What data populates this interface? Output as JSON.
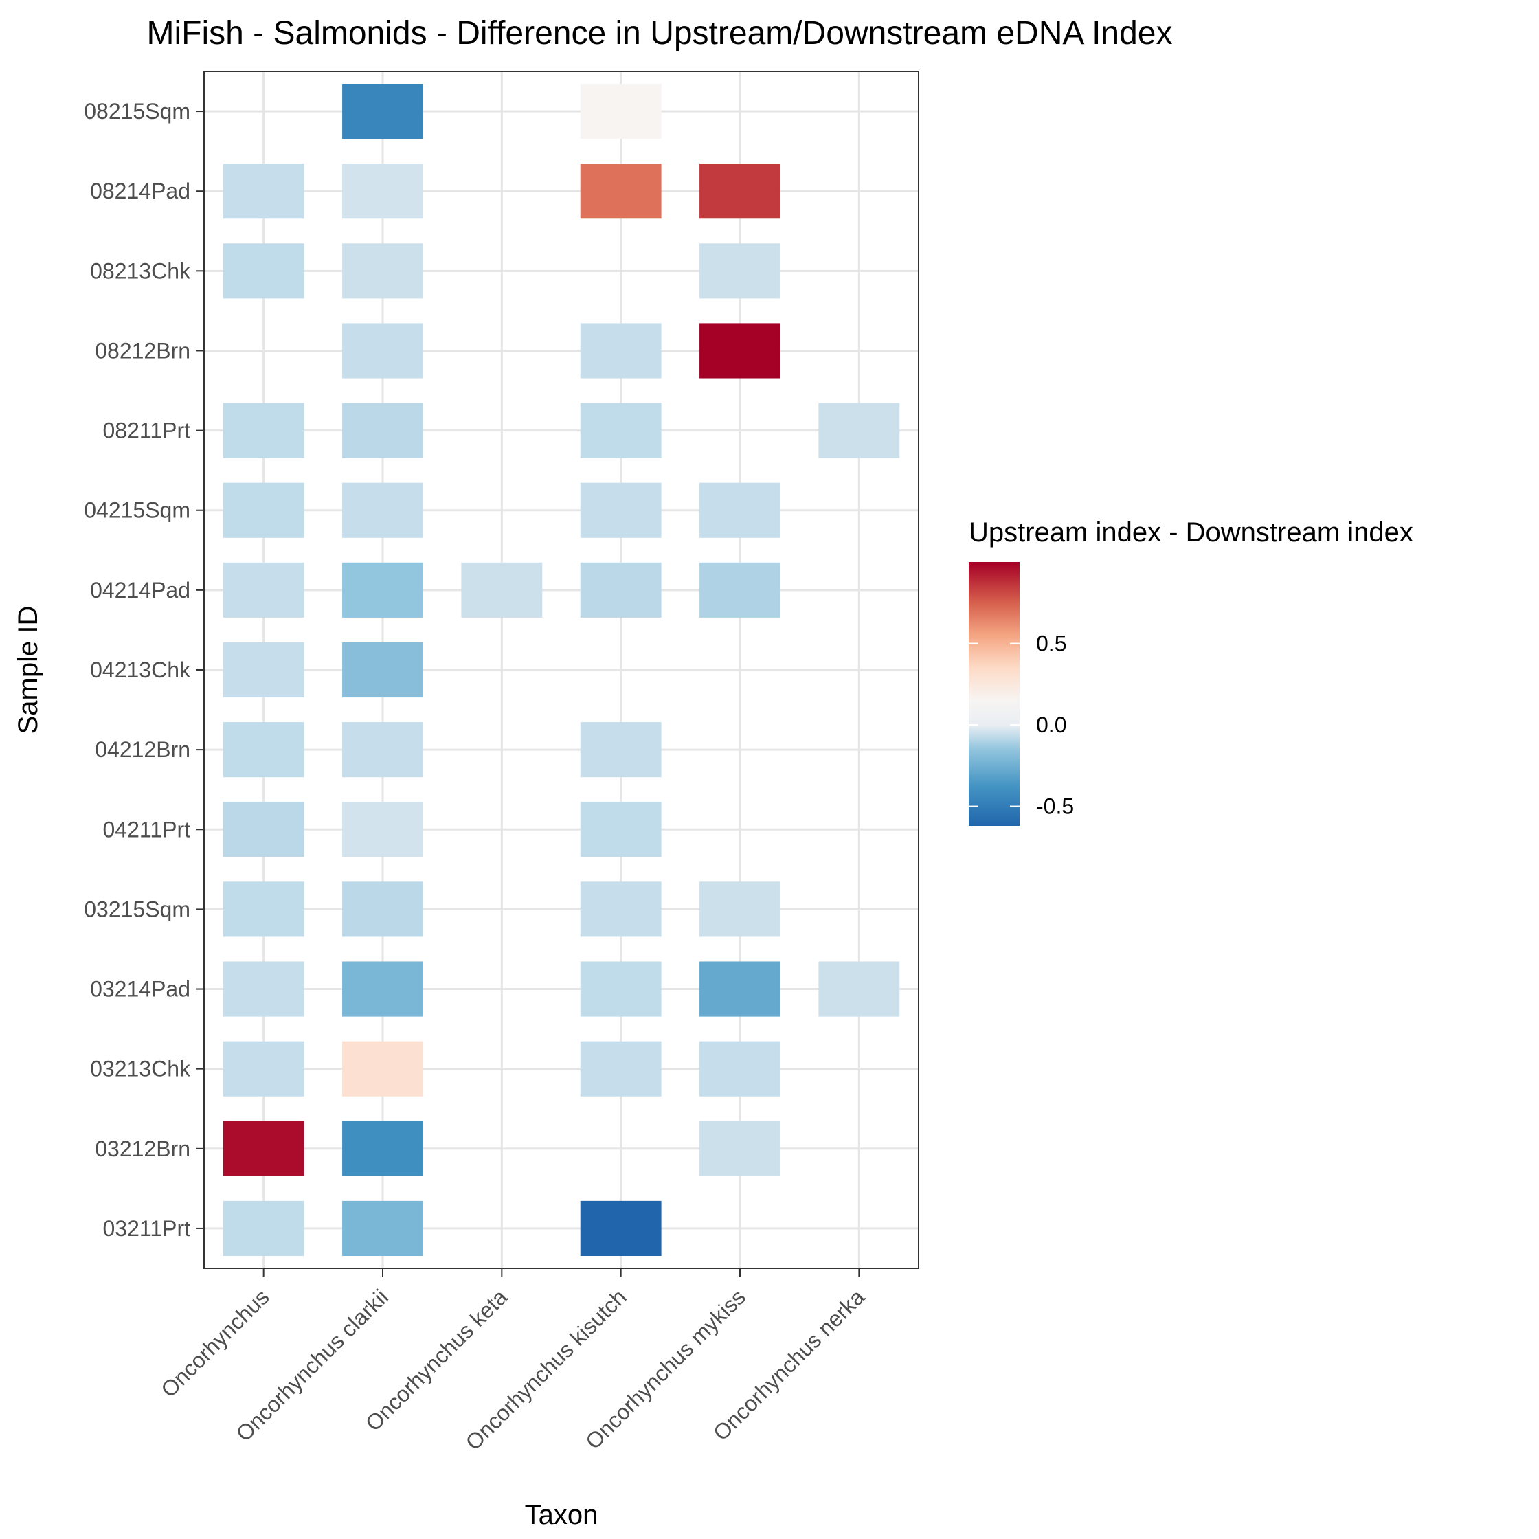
{
  "chart_data": {
    "type": "heatmap",
    "title": "MiFish - Salmonids - Difference in Upstream/Downstream eDNA Index",
    "xlabel": "Taxon",
    "ylabel": "Sample ID",
    "x_categories": [
      "Oncorhynchus",
      "Oncorhynchus clarkii",
      "Oncorhynchus keta",
      "Oncorhynchus kisutch",
      "Oncorhynchus mykiss",
      "Oncorhynchus nerka"
    ],
    "y_categories": [
      "03211Prt",
      "03212Brn",
      "03213Chk",
      "03214Pad",
      "03215Sqm",
      "04211Prt",
      "04212Brn",
      "04213Chk",
      "04214Pad",
      "04215Sqm",
      "08211Prt",
      "08212Brn",
      "08213Chk",
      "08214Pad",
      "08215Sqm"
    ],
    "cells": [
      {
        "x": "Oncorhynchus clarkii",
        "y": "08215Sqm",
        "value": -0.45
      },
      {
        "x": "Oncorhynchus kisutch",
        "y": "08215Sqm",
        "value": 0.15
      },
      {
        "x": "Oncorhynchus",
        "y": "08214Pad",
        "value": -0.06
      },
      {
        "x": "Oncorhynchus clarkii",
        "y": "08214Pad",
        "value": -0.04
      },
      {
        "x": "Oncorhynchus kisutch",
        "y": "08214Pad",
        "value": 0.7
      },
      {
        "x": "Oncorhynchus mykiss",
        "y": "08214Pad",
        "value": 0.85
      },
      {
        "x": "Oncorhynchus",
        "y": "08213Chk",
        "value": -0.07
      },
      {
        "x": "Oncorhynchus clarkii",
        "y": "08213Chk",
        "value": -0.05
      },
      {
        "x": "Oncorhynchus mykiss",
        "y": "08213Chk",
        "value": -0.05
      },
      {
        "x": "Oncorhynchus clarkii",
        "y": "08212Brn",
        "value": -0.06
      },
      {
        "x": "Oncorhynchus kisutch",
        "y": "08212Brn",
        "value": -0.06
      },
      {
        "x": "Oncorhynchus mykiss",
        "y": "08212Brn",
        "value": 1.0
      },
      {
        "x": "Oncorhynchus",
        "y": "08211Prt",
        "value": -0.07
      },
      {
        "x": "Oncorhynchus clarkii",
        "y": "08211Prt",
        "value": -0.08
      },
      {
        "x": "Oncorhynchus kisutch",
        "y": "08211Prt",
        "value": -0.07
      },
      {
        "x": "Oncorhynchus nerka",
        "y": "08211Prt",
        "value": -0.05
      },
      {
        "x": "Oncorhynchus",
        "y": "04215Sqm",
        "value": -0.07
      },
      {
        "x": "Oncorhynchus clarkii",
        "y": "04215Sqm",
        "value": -0.06
      },
      {
        "x": "Oncorhynchus kisutch",
        "y": "04215Sqm",
        "value": -0.06
      },
      {
        "x": "Oncorhynchus mykiss",
        "y": "04215Sqm",
        "value": -0.06
      },
      {
        "x": "Oncorhynchus",
        "y": "04214Pad",
        "value": -0.06
      },
      {
        "x": "Oncorhynchus clarkii",
        "y": "04214Pad",
        "value": -0.15
      },
      {
        "x": "Oncorhynchus keta",
        "y": "04214Pad",
        "value": -0.05
      },
      {
        "x": "Oncorhynchus kisutch",
        "y": "04214Pad",
        "value": -0.08
      },
      {
        "x": "Oncorhynchus mykiss",
        "y": "04214Pad",
        "value": -0.1
      },
      {
        "x": "Oncorhynchus",
        "y": "04213Chk",
        "value": -0.06
      },
      {
        "x": "Oncorhynchus clarkii",
        "y": "04213Chk",
        "value": -0.18
      },
      {
        "x": "Oncorhynchus",
        "y": "04212Brn",
        "value": -0.07
      },
      {
        "x": "Oncorhynchus clarkii",
        "y": "04212Brn",
        "value": -0.06
      },
      {
        "x": "Oncorhynchus kisutch",
        "y": "04212Brn",
        "value": -0.06
      },
      {
        "x": "Oncorhynchus",
        "y": "04211Prt",
        "value": -0.08
      },
      {
        "x": "Oncorhynchus clarkii",
        "y": "04211Prt",
        "value": -0.04
      },
      {
        "x": "Oncorhynchus kisutch",
        "y": "04211Prt",
        "value": -0.07
      },
      {
        "x": "Oncorhynchus",
        "y": "03215Sqm",
        "value": -0.07
      },
      {
        "x": "Oncorhynchus clarkii",
        "y": "03215Sqm",
        "value": -0.08
      },
      {
        "x": "Oncorhynchus kisutch",
        "y": "03215Sqm",
        "value": -0.06
      },
      {
        "x": "Oncorhynchus mykiss",
        "y": "03215Sqm",
        "value": -0.05
      },
      {
        "x": "Oncorhynchus",
        "y": "03214Pad",
        "value": -0.06
      },
      {
        "x": "Oncorhynchus clarkii",
        "y": "03214Pad",
        "value": -0.22
      },
      {
        "x": "Oncorhynchus kisutch",
        "y": "03214Pad",
        "value": -0.07
      },
      {
        "x": "Oncorhynchus mykiss",
        "y": "03214Pad",
        "value": -0.28
      },
      {
        "x": "Oncorhynchus nerka",
        "y": "03214Pad",
        "value": -0.05
      },
      {
        "x": "Oncorhynchus",
        "y": "03213Chk",
        "value": -0.06
      },
      {
        "x": "Oncorhynchus clarkii",
        "y": "03213Chk",
        "value": 0.3
      },
      {
        "x": "Oncorhynchus kisutch",
        "y": "03213Chk",
        "value": -0.06
      },
      {
        "x": "Oncorhynchus mykiss",
        "y": "03213Chk",
        "value": -0.06
      },
      {
        "x": "Oncorhynchus",
        "y": "03212Brn",
        "value": 0.97
      },
      {
        "x": "Oncorhynchus clarkii",
        "y": "03212Brn",
        "value": -0.4
      },
      {
        "x": "Oncorhynchus mykiss",
        "y": "03212Brn",
        "value": -0.05
      },
      {
        "x": "Oncorhynchus",
        "y": "03211Prt",
        "value": -0.07
      },
      {
        "x": "Oncorhynchus clarkii",
        "y": "03211Prt",
        "value": -0.22
      },
      {
        "x": "Oncorhynchus kisutch",
        "y": "03211Prt",
        "value": -0.65
      }
    ],
    "color_scale": {
      "palette": "RdBu diverging",
      "min": -0.62,
      "max": 1.0,
      "stops": [
        {
          "value": -0.62,
          "color": "#2166ac"
        },
        {
          "value": -0.38,
          "color": "#4393c3"
        },
        {
          "value": -0.15,
          "color": "#92c5de"
        },
        {
          "value": 0.0,
          "color": "#e9eef3"
        },
        {
          "value": 0.15,
          "color": "#f7f4f2"
        },
        {
          "value": 0.35,
          "color": "#fddbc7"
        },
        {
          "value": 0.55,
          "color": "#f4a582"
        },
        {
          "value": 0.75,
          "color": "#d6604d"
        },
        {
          "value": 1.0,
          "color": "#a50026"
        }
      ],
      "ticks": [
        {
          "value": 0.5,
          "label": "0.5"
        },
        {
          "value": 0.0,
          "label": "0.0"
        },
        {
          "value": -0.5,
          "label": "-0.5"
        }
      ]
    },
    "legend": {
      "title": "Upstream index - Downstream index",
      "placement": "right"
    },
    "grid": true,
    "panel_border": true
  }
}
